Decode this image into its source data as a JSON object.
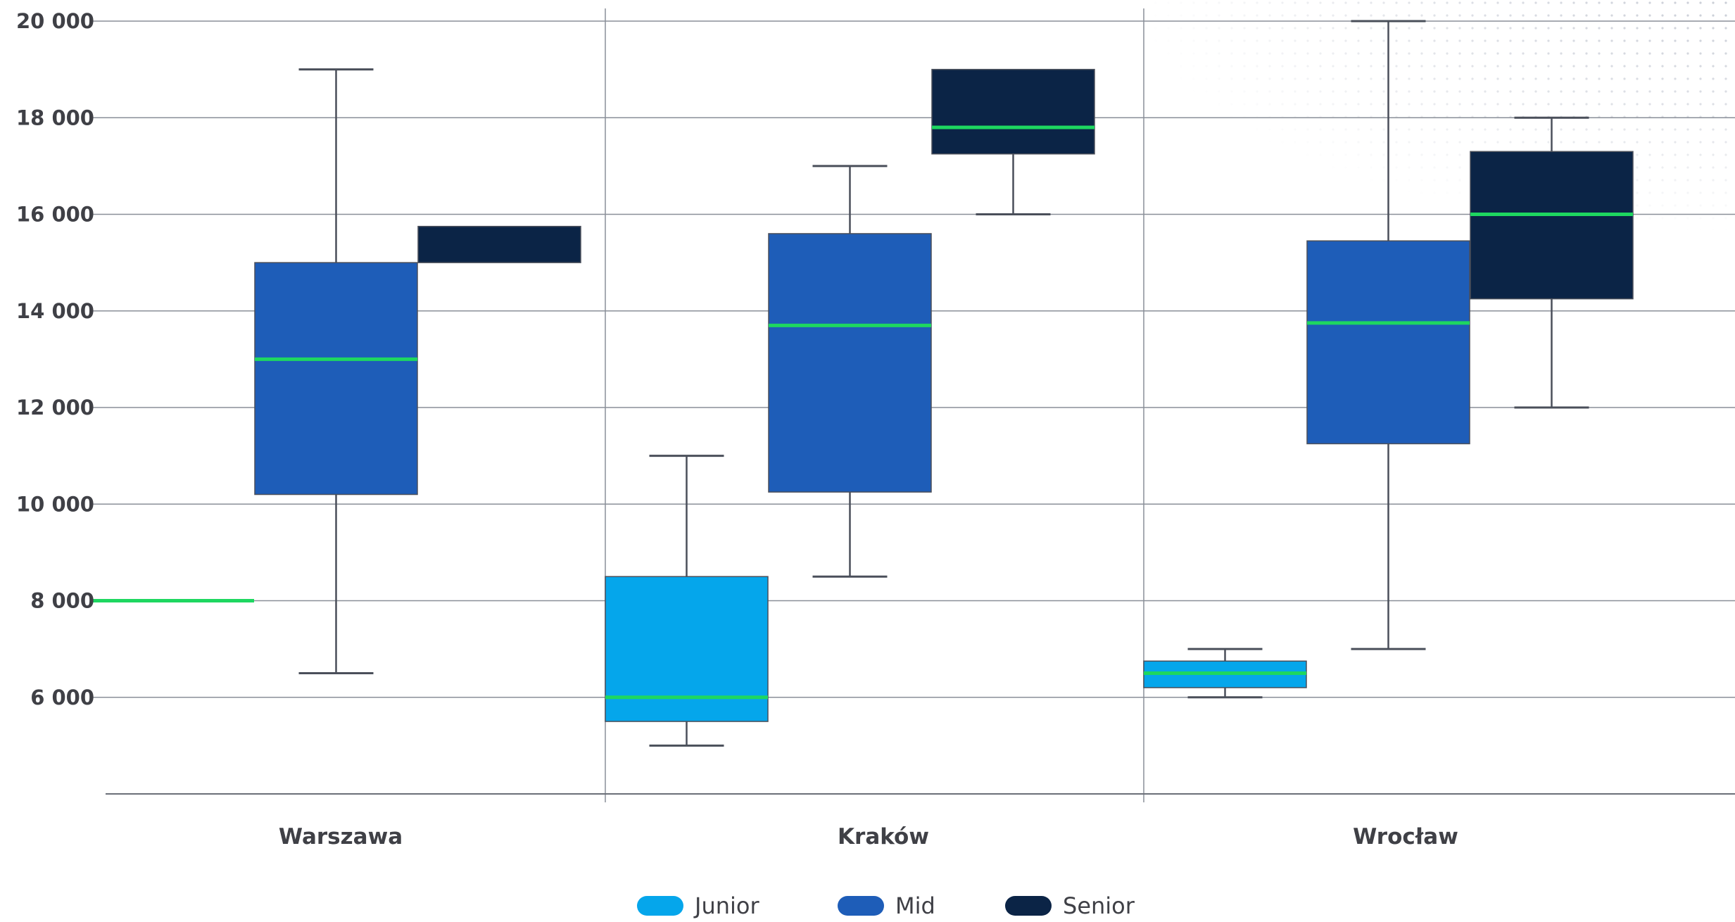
{
  "chart_data": {
    "type": "box",
    "categories": [
      "Warszawa",
      "Kraków",
      "Wrocław"
    ],
    "ylim": [
      4000,
      20000
    ],
    "yticks": [
      6000,
      8000,
      10000,
      12000,
      14000,
      16000,
      18000,
      20000
    ],
    "ytick_labels": [
      "6 000",
      "8 000",
      "10 000",
      "12 000",
      "14 000",
      "16 000",
      "18 000",
      "20 000"
    ],
    "xlabel": "",
    "ylabel": "",
    "grid": true,
    "legend_position": "bottom-center",
    "median_color": "#1ed760",
    "series": [
      {
        "name": "Junior",
        "color": "#05a6eb",
        "boxes": [
          {
            "category": "Warszawa",
            "min": 8000,
            "q1": 8000,
            "median": 8000,
            "q3": 8000,
            "max": 8000
          },
          {
            "category": "Kraków",
            "min": 5000,
            "q1": 5500,
            "median": 6000,
            "q3": 8500,
            "max": 11000
          },
          {
            "category": "Wrocław",
            "min": 6000,
            "q1": 6200,
            "median": 6500,
            "q3": 6750,
            "max": 7000
          }
        ]
      },
      {
        "name": "Mid",
        "color": "#1e5db8",
        "boxes": [
          {
            "category": "Warszawa",
            "min": 6500,
            "q1": 10200,
            "median": 13000,
            "q3": 15000,
            "max": 19000
          },
          {
            "category": "Kraków",
            "min": 8500,
            "q1": 10250,
            "median": 13700,
            "q3": 15600,
            "max": 17000
          },
          {
            "category": "Wrocław",
            "min": 7000,
            "q1": 11250,
            "median": 13750,
            "q3": 15450,
            "max": 20000
          }
        ]
      },
      {
        "name": "Senior",
        "color": "#0b2446",
        "boxes": [
          {
            "category": "Warszawa",
            "min": 15000,
            "q1": 15000,
            "median": 15000,
            "q3": 15750,
            "max": 15750
          },
          {
            "category": "Kraków",
            "min": 16000,
            "q1": 17250,
            "median": 17800,
            "q3": 19000,
            "max": 19000
          },
          {
            "category": "Wrocław",
            "min": 12000,
            "q1": 14250,
            "median": 16000,
            "q3": 17300,
            "max": 18000
          }
        ]
      }
    ]
  }
}
